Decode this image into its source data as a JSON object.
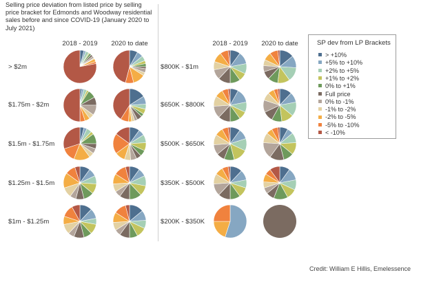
{
  "title": "Selling price deviation from listed price by selling price bracket for Edmonds and Woodway residential sales before and since COVID-19 (January 2020 to July 2021)",
  "credit": "Credit: William E Hillis, Emelessence",
  "chart_data": {
    "type": "pie",
    "title": "Selling price deviation from listed price by selling price bracket for Edmonds and Woodway residential sales before and since COVID-19 (January 2020 to July 2021)",
    "column_headers": [
      "2018 - 2019",
      "2020 to date",
      "2018 - 2019",
      "2020 to date"
    ],
    "legend": {
      "title": "SP dev from LP Brackets",
      "placement": "right",
      "items": [
        {
          "label": "> +10%",
          "color": "#4e6f8f"
        },
        {
          "label": "+5% to +10%",
          "color": "#86a7c2"
        },
        {
          "label": "+2% to +5%",
          "color": "#a5cfb5"
        },
        {
          "label": "+1% to +2%",
          "color": "#c3c45d"
        },
        {
          "label": "0% to +1%",
          "color": "#6e9a5c"
        },
        {
          "label": "Full price",
          "color": "#7b6b61"
        },
        {
          "label": "0% to -1%",
          "color": "#b3a59b"
        },
        {
          "label": "-1% to -2%",
          "color": "#e3d1a2"
        },
        {
          "label": "-2% to -5%",
          "color": "#f4ad45"
        },
        {
          "label": "-5% to -10%",
          "color": "#f0823e"
        },
        {
          "label": "< -10%",
          "color": "#b35846"
        }
      ]
    },
    "groups": [
      {
        "bracket": "> $2m",
        "period": "2018 - 2019",
        "values": [
          4,
          2,
          3,
          1,
          2,
          2,
          2,
          1,
          3,
          2,
          78
        ]
      },
      {
        "bracket": "> $2m",
        "period": "2020 to date",
        "values": [
          8,
          6,
          5,
          3,
          3,
          2,
          4,
          3,
          12,
          8,
          46
        ]
      },
      {
        "bracket": "$1.75m - $2m",
        "period": "2018 - 2019",
        "values": [
          2,
          2,
          3,
          2,
          8,
          8,
          10,
          5,
          5,
          5,
          50
        ]
      },
      {
        "bracket": "$1.75m - $2m",
        "period": "2020 to date",
        "values": [
          16,
          8,
          5,
          5,
          3,
          5,
          3,
          3,
          3,
          8,
          41
        ]
      },
      {
        "bracket": "$1.5m - $1.75m",
        "period": "2018 - 2019",
        "values": [
          4,
          3,
          5,
          3,
          10,
          5,
          5,
          5,
          16,
          14,
          30
        ]
      },
      {
        "bracket": "$1.5m - $1.75m",
        "period": "2020 to date",
        "values": [
          10,
          6,
          8,
          8,
          6,
          5,
          6,
          6,
          10,
          20,
          15
        ]
      },
      {
        "bracket": "$1.25m - $1.5m",
        "period": "2018 - 2019",
        "values": [
          10,
          8,
          8,
          10,
          10,
          8,
          6,
          10,
          15,
          10,
          5
        ]
      },
      {
        "bracket": "$1.25m - $1.5m",
        "period": "2020 to date",
        "values": [
          10,
          8,
          10,
          10,
          12,
          10,
          6,
          8,
          10,
          12,
          4
        ]
      },
      {
        "bracket": "$1m - $1.25m",
        "period": "2018 - 2019",
        "values": [
          12,
          10,
          6,
          10,
          8,
          10,
          6,
          10,
          8,
          12,
          8
        ]
      },
      {
        "bracket": "$1m - $1.25m",
        "period": "2020 to date",
        "values": [
          14,
          10,
          8,
          10,
          8,
          10,
          6,
          8,
          10,
          12,
          4
        ]
      },
      {
        "bracket": "$800K - $1m",
        "period": "2018 - 2019",
        "values": [
          10,
          12,
          10,
          8,
          10,
          12,
          10,
          8,
          10,
          8,
          2
        ]
      },
      {
        "bracket": "$800K - $1m",
        "period": "2020 to date",
        "values": [
          14,
          12,
          14,
          12,
          10,
          8,
          6,
          6,
          8,
          8,
          2
        ]
      },
      {
        "bracket": "$650K - $800K",
        "period": "2018 - 2019",
        "values": [
          8,
          14,
          10,
          8,
          10,
          12,
          12,
          10,
          8,
          6,
          2
        ]
      },
      {
        "bracket": "$650K - $800K",
        "period": "2020 to date",
        "values": [
          12,
          10,
          14,
          12,
          10,
          10,
          12,
          8,
          6,
          4,
          2
        ]
      },
      {
        "bracket": "$500K - $650K",
        "period": "2018 - 2019",
        "values": [
          10,
          10,
          12,
          14,
          10,
          8,
          10,
          10,
          8,
          6,
          2
        ]
      },
      {
        "bracket": "$500K - $650K",
        "period": "2020 to date",
        "values": [
          8,
          6,
          10,
          12,
          10,
          14,
          16,
          10,
          6,
          6,
          2
        ]
      },
      {
        "bracket": "$350K - $500K",
        "period": "2018 - 2019",
        "values": [
          12,
          10,
          8,
          10,
          10,
          12,
          12,
          10,
          8,
          6,
          2
        ]
      },
      {
        "bracket": "$350K - $500K",
        "period": "2020 to date",
        "values": [
          10,
          12,
          10,
          10,
          14,
          8,
          6,
          6,
          8,
          6,
          10
        ]
      },
      {
        "bracket": "$200K - $350K",
        "period": "2018 - 2019",
        "values": [
          0,
          55,
          0,
          0,
          0,
          0,
          0,
          0,
          20,
          25,
          0
        ]
      },
      {
        "bracket": "$200K - $350K",
        "period": "2020 to date",
        "values": [
          0,
          0,
          0,
          0,
          0,
          100,
          0,
          0,
          0,
          0,
          0
        ]
      }
    ]
  }
}
